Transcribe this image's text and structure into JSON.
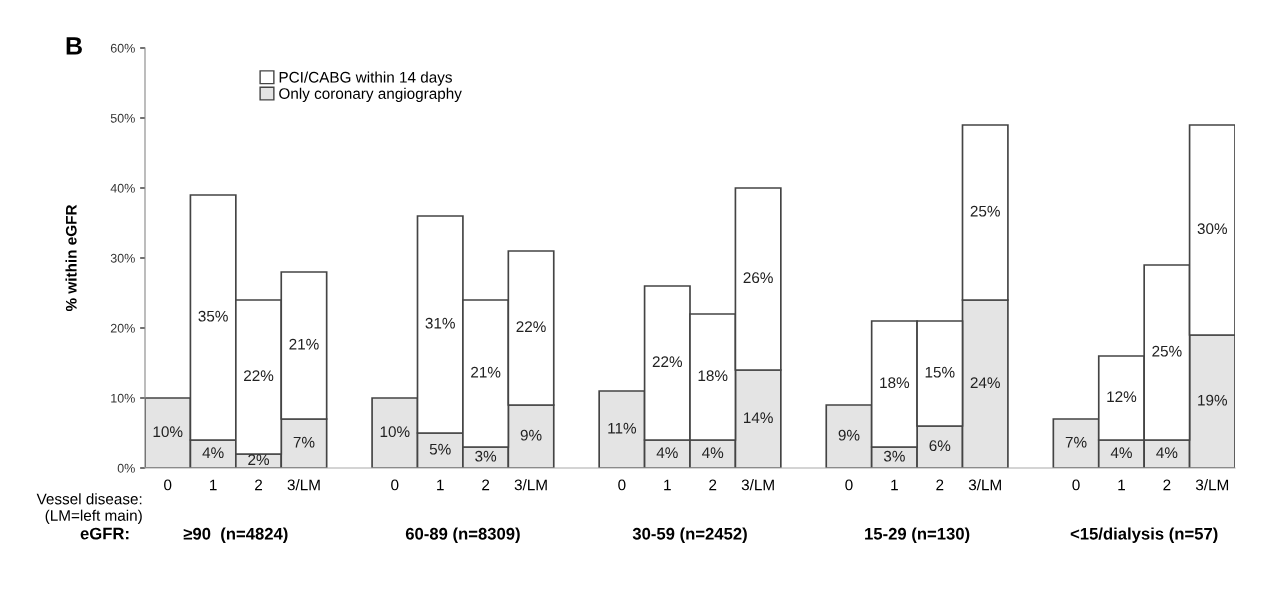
{
  "chart_data": {
    "type": "bar",
    "stacked": true,
    "ylabel": "% within eGFR",
    "categories": [
      "0",
      "1",
      "2",
      "3/LM",
      null,
      "0",
      "1",
      "2",
      "3/LM",
      null,
      "0",
      "1",
      "2",
      "3/LM",
      null,
      "0",
      "1",
      "2",
      "3/LM",
      null,
      "0",
      "1",
      "2",
      "3/LM"
    ],
    "series": [
      {
        "name": "Only coronary angiography",
        "color": "#e4e4e4",
        "values": [
          10,
          4,
          2,
          7,
          null,
          10,
          5,
          3,
          9,
          null,
          11,
          4,
          4,
          14,
          null,
          9,
          3,
          6,
          24,
          null,
          7,
          4,
          4,
          19
        ],
        "value_labels": [
          "10%",
          "4%",
          "2%",
          "7%",
          null,
          "10%",
          "5%",
          "3%",
          "9%",
          null,
          "11%",
          "4%",
          "4%",
          "14%",
          null,
          "9%",
          "3%",
          "6%",
          "24%",
          null,
          "7%",
          "4%",
          "4%",
          "19%"
        ]
      },
      {
        "name": "PCI/CABG within 14 days",
        "color": "#ffffff",
        "values": [
          null,
          35,
          22,
          21,
          null,
          null,
          31,
          21,
          22,
          null,
          null,
          22,
          18,
          26,
          null,
          null,
          18,
          15,
          25,
          null,
          null,
          12,
          25,
          30
        ],
        "value_labels": [
          null,
          "35%",
          "22%",
          "21%",
          null,
          null,
          "31%",
          "21%",
          "22%",
          null,
          null,
          "22%",
          "18%",
          "26%",
          null,
          null,
          "18%",
          "15%",
          "25%",
          null,
          null,
          "12%",
          "25%",
          "30%"
        ]
      }
    ],
    "ylim": [
      0,
      60
    ],
    "yticks": [
      {
        "value": 0,
        "label": "0%"
      },
      {
        "value": 10,
        "label": "10%"
      },
      {
        "value": 20,
        "label": "20%"
      },
      {
        "value": 30,
        "label": "30%"
      },
      {
        "value": 40,
        "label": "40%"
      },
      {
        "value": 50,
        "label": "50%"
      },
      {
        "value": 60,
        "label": "60%"
      }
    ],
    "legend": "top left",
    "annotations": [
      "B",
      "Vessel disease:\n(LM=left main)",
      "eGFR:",
      "≥90  (n=4824)",
      "60-89 (n=8309)",
      "30-59 (n=2452)",
      "15-29 (n=130)",
      "<15/dialysis (n=57)"
    ]
  }
}
